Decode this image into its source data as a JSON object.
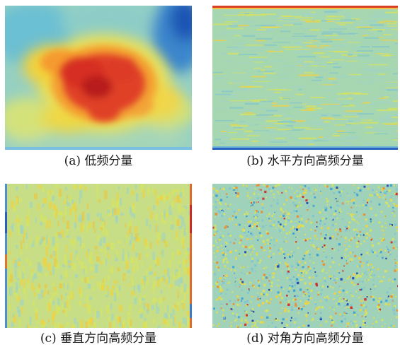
{
  "figure": {
    "panels": [
      {
        "id": "a",
        "caption": "(a) 低频分量"
      },
      {
        "id": "b",
        "caption": "(b) 水平方向高频分量"
      },
      {
        "id": "c",
        "caption": "(c) 垂直方向高频分量"
      },
      {
        "id": "d",
        "caption": "(d) 对角方向高频分量"
      }
    ],
    "colormap": [
      "#1a3fae",
      "#3aa0d8",
      "#9fd3c4",
      "#d9e35a",
      "#f5d13a",
      "#f08a2a",
      "#d42424"
    ]
  }
}
